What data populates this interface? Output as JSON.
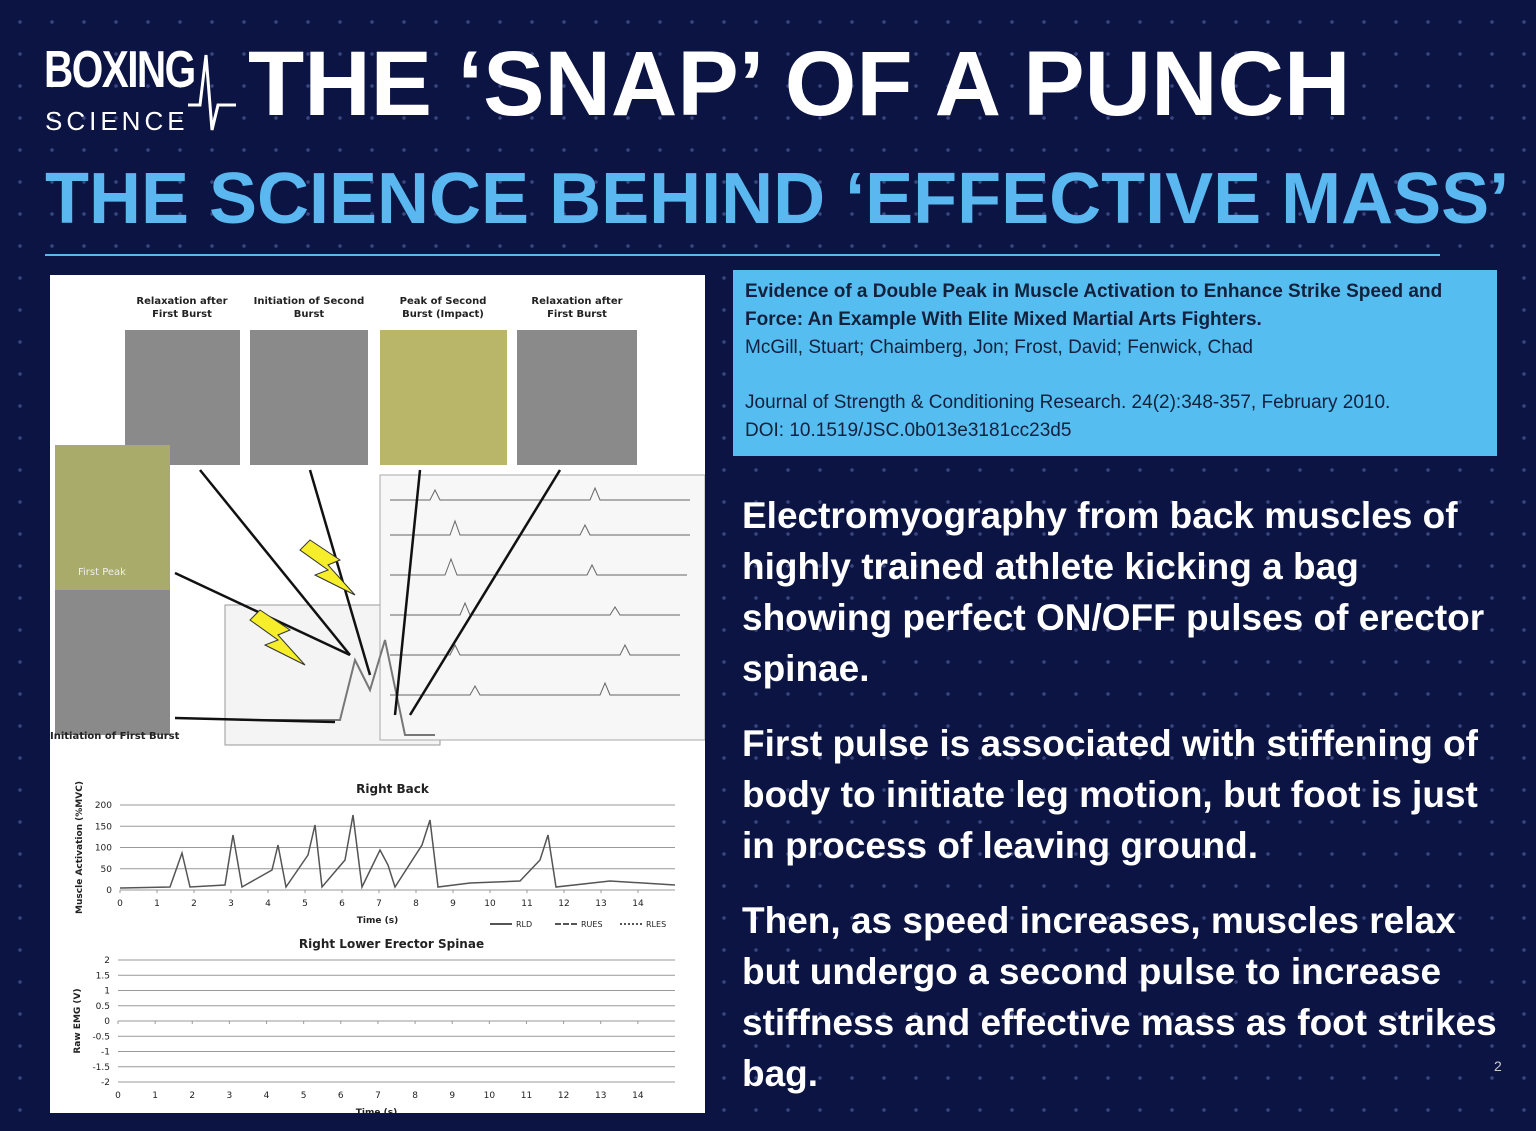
{
  "header": {
    "logo_top": "BOXING",
    "logo_bottom": "SCIENCE",
    "title": "THE ‘SNAP’ OF A PUNCH",
    "subtitle": "THE SCIENCE BEHIND ‘EFFECTIVE MASS’"
  },
  "figure": {
    "photo_captions": [
      "Relaxation after First Burst",
      "Initiation of Second Burst",
      "Peak of Second Burst (Impact)",
      "Relaxation after First Burst"
    ],
    "side_labels": [
      "First Peak",
      "Initiation of First Burst"
    ],
    "charts": [
      {
        "title": "Right Back",
        "y_label": "Muscle Activation (%MVC)",
        "x_label": "Time (s)",
        "ylim": [
          0,
          200
        ],
        "yticks": [
          0,
          50,
          100,
          150,
          200
        ],
        "xlim": [
          0,
          15
        ],
        "xticks": [
          0,
          1,
          2,
          3,
          4,
          5,
          6,
          7,
          8,
          9,
          10,
          11,
          12,
          13,
          14
        ],
        "legend": [
          "RLD",
          "RUES",
          "RLES"
        ]
      },
      {
        "title": "Right Lower Erector Spinae",
        "y_label": "Raw EMG (V)",
        "x_label": "Time (s)",
        "ylim": [
          -2,
          2
        ],
        "yticks": [
          2,
          1.5,
          1,
          0.5,
          0,
          -0.5,
          -1,
          -1.5,
          -2
        ],
        "xlim": [
          0,
          15
        ],
        "xticks": [
          0,
          1,
          2,
          3,
          4,
          5,
          6,
          7,
          8,
          9,
          10,
          11,
          12,
          13,
          14
        ]
      }
    ]
  },
  "reference": {
    "title": "Evidence of a Double Peak in Muscle Activation to Enhance Strike Speed and Force: An Example With Elite Mixed Martial Arts Fighters.",
    "authors": "McGill, Stuart; Chaimberg, Jon; Frost, David; Fenwick, Chad",
    "journal": "Journal of Strength & Conditioning Research. 24(2):348-357, February 2010.",
    "doi": "DOI: 10.1519/JSC.0b013e3181cc23d5"
  },
  "paragraphs": [
    "Electromyography from back muscles of highly trained athlete kicking a bag showing perfect ON/OFF pulses of erector spinae.",
    "First pulse is associated with stiffening of body to initiate leg motion, but foot is just in process of leaving ground.",
    "Then, as speed increases, muscles relax but undergo a second pulse to increase stiffness and effective mass as foot strikes bag."
  ],
  "page_number": 2
}
